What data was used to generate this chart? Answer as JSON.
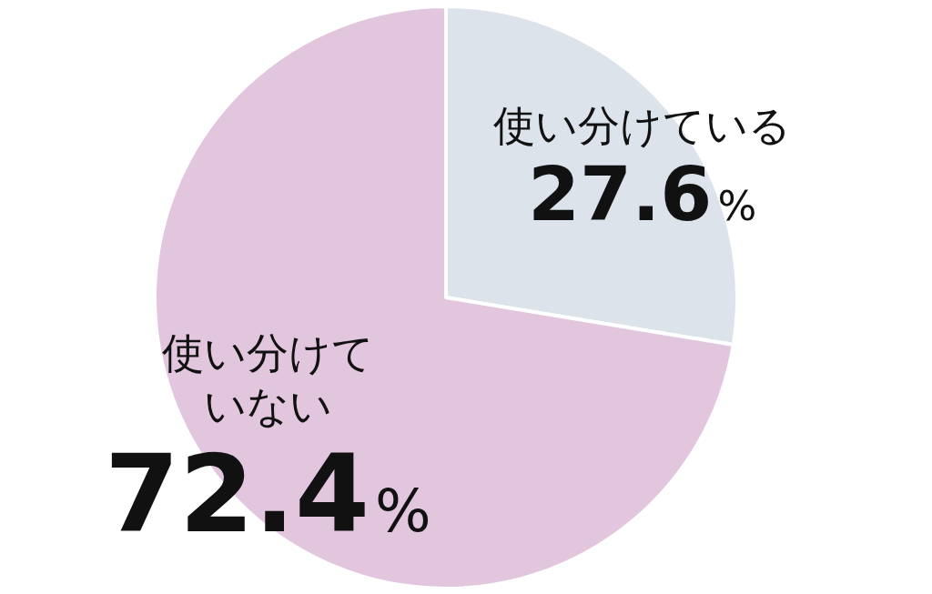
{
  "chart_data": {
    "type": "pie",
    "categories": [
      "使い分けている",
      "使い分けていない"
    ],
    "values": [
      27.6,
      72.4
    ],
    "colors": [
      "#dce3ea",
      "#e2c6de"
    ],
    "value_labels": [
      "27.6%",
      "72.4%"
    ]
  }
}
